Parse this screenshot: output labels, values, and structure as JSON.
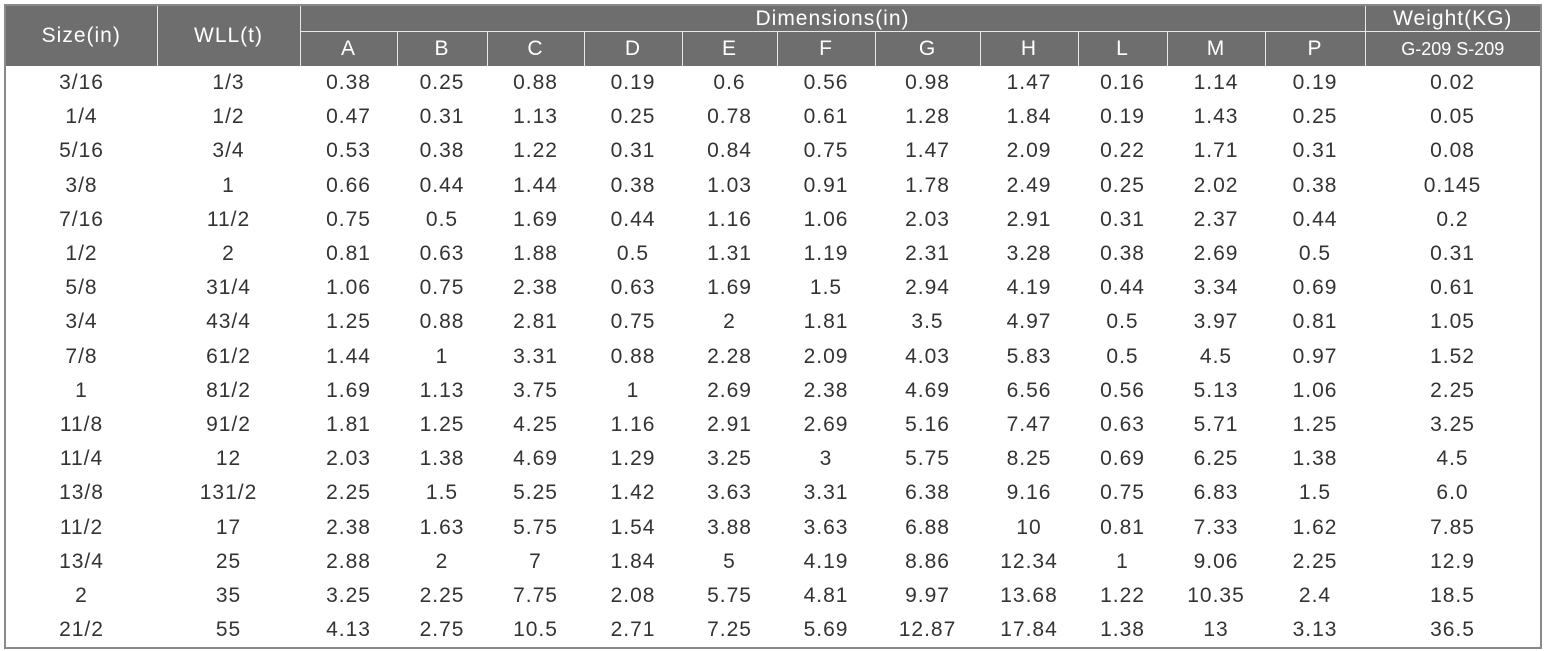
{
  "header": {
    "size": "Size(in)",
    "wll": "WLL(t)",
    "dimensions": "Dimensions(in)",
    "weight": "Weight(KG)",
    "weight_sub": "G-209 S-209",
    "columns": [
      "A",
      "B",
      "C",
      "D",
      "E",
      "F",
      "G",
      "H",
      "L",
      "M",
      "P"
    ]
  },
  "table": {
    "rows": [
      [
        "3/16",
        "1/3",
        "0.38",
        "0.25",
        "0.88",
        "0.19",
        "0.6",
        "0.56",
        "0.98",
        "1.47",
        "0.16",
        "1.14",
        "0.19",
        "0.02"
      ],
      [
        "1/4",
        "1/2",
        "0.47",
        "0.31",
        "1.13",
        "0.25",
        "0.78",
        "0.61",
        "1.28",
        "1.84",
        "0.19",
        "1.43",
        "0.25",
        "0.05"
      ],
      [
        "5/16",
        "3/4",
        "0.53",
        "0.38",
        "1.22",
        "0.31",
        "0.84",
        "0.75",
        "1.47",
        "2.09",
        "0.22",
        "1.71",
        "0.31",
        "0.08"
      ],
      [
        "3/8",
        "1",
        "0.66",
        "0.44",
        "1.44",
        "0.38",
        "1.03",
        "0.91",
        "1.78",
        "2.49",
        "0.25",
        "2.02",
        "0.38",
        "0.145"
      ],
      [
        "7/16",
        "11/2",
        "0.75",
        "0.5",
        "1.69",
        "0.44",
        "1.16",
        "1.06",
        "2.03",
        "2.91",
        "0.31",
        "2.37",
        "0.44",
        "0.2"
      ],
      [
        "1/2",
        "2",
        "0.81",
        "0.63",
        "1.88",
        "0.5",
        "1.31",
        "1.19",
        "2.31",
        "3.28",
        "0.38",
        "2.69",
        "0.5",
        "0.31"
      ],
      [
        "5/8",
        "31/4",
        "1.06",
        "0.75",
        "2.38",
        "0.63",
        "1.69",
        "1.5",
        "2.94",
        "4.19",
        "0.44",
        "3.34",
        "0.69",
        "0.61"
      ],
      [
        "3/4",
        "43/4",
        "1.25",
        "0.88",
        "2.81",
        "0.75",
        "2",
        "1.81",
        "3.5",
        "4.97",
        "0.5",
        "3.97",
        "0.81",
        "1.05"
      ],
      [
        "7/8",
        "61/2",
        "1.44",
        "1",
        "3.31",
        "0.88",
        "2.28",
        "2.09",
        "4.03",
        "5.83",
        "0.5",
        "4.5",
        "0.97",
        "1.52"
      ],
      [
        "1",
        "81/2",
        "1.69",
        "1.13",
        "3.75",
        "1",
        "2.69",
        "2.38",
        "4.69",
        "6.56",
        "0.56",
        "5.13",
        "1.06",
        "2.25"
      ],
      [
        "11/8",
        "91/2",
        "1.81",
        "1.25",
        "4.25",
        "1.16",
        "2.91",
        "2.69",
        "5.16",
        "7.47",
        "0.63",
        "5.71",
        "1.25",
        "3.25"
      ],
      [
        "11/4",
        "12",
        "2.03",
        "1.38",
        "4.69",
        "1.29",
        "3.25",
        "3",
        "5.75",
        "8.25",
        "0.69",
        "6.25",
        "1.38",
        "4.5"
      ],
      [
        "13/8",
        "131/2",
        "2.25",
        "1.5",
        "5.25",
        "1.42",
        "3.63",
        "3.31",
        "6.38",
        "9.16",
        "0.75",
        "6.83",
        "1.5",
        "6.0"
      ],
      [
        "11/2",
        "17",
        "2.38",
        "1.63",
        "5.75",
        "1.54",
        "3.88",
        "3.63",
        "6.88",
        "10",
        "0.81",
        "7.33",
        "1.62",
        "7.85"
      ],
      [
        "13/4",
        "25",
        "2.88",
        "2",
        "7",
        "1.84",
        "5",
        "4.19",
        "8.86",
        "12.34",
        "1",
        "9.06",
        "2.25",
        "12.9"
      ],
      [
        "2",
        "35",
        "3.25",
        "2.25",
        "7.75",
        "2.08",
        "5.75",
        "4.81",
        "9.97",
        "13.68",
        "1.22",
        "10.35",
        "2.4",
        "18.5"
      ],
      [
        "21/2",
        "55",
        "4.13",
        "2.75",
        "10.5",
        "2.71",
        "7.25",
        "5.69",
        "12.87",
        "17.84",
        "1.38",
        "13",
        "3.13",
        "36.5"
      ]
    ]
  }
}
